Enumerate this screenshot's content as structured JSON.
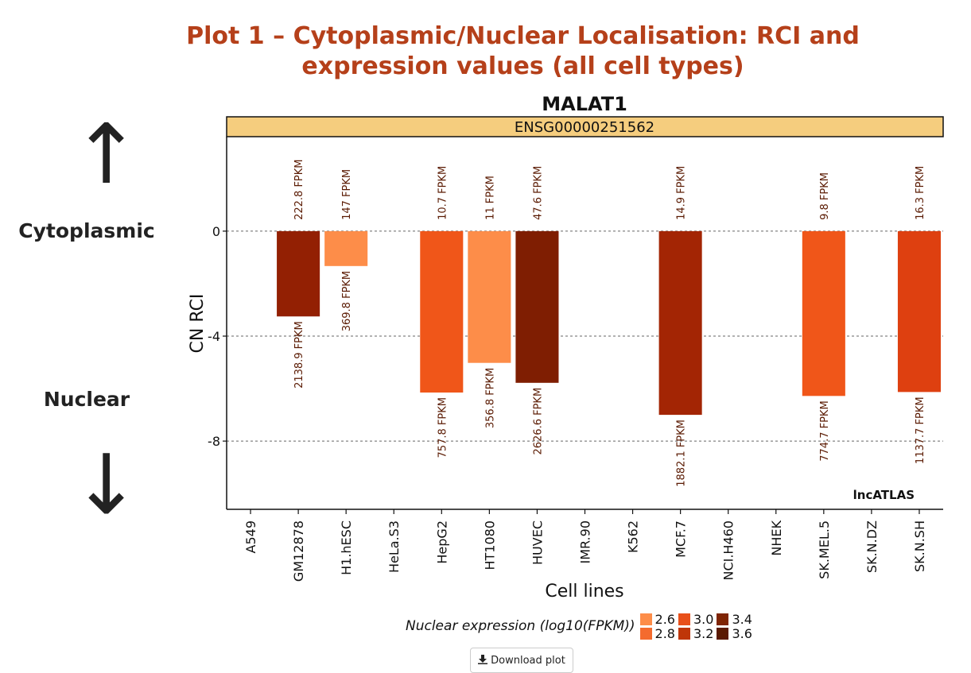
{
  "page": {
    "title_line1": "Plot 1 – Cytoplasmic/Nuclear Localisation: RCI and",
    "title_line2": "expression values (all cell types)",
    "cytoplasmic_label": "Cytoplasmic",
    "nuclear_label": "Nuclear",
    "up_arrow": "↑",
    "down_arrow": "↓",
    "download_label": "Download plot",
    "download_icon": "download-icon"
  },
  "chart_data": {
    "type": "bar",
    "title": "MALAT1",
    "subtitle": "ENSG00000251562",
    "xlabel": "Cell lines",
    "ylabel": "CN RCI",
    "watermark": "lncATLAS",
    "ylim": [
      -10.6,
      3.6
    ],
    "yticks": [
      0,
      -4,
      -8
    ],
    "ytick_labels": [
      "0",
      "-4",
      "-8"
    ],
    "grid": "horizontal dashed at y ticks",
    "categories": [
      "A549",
      "GM12878",
      "H1.hESC",
      "HeLa.S3",
      "HepG2",
      "HT1080",
      "HUVEC",
      "IMR.90",
      "K562",
      "MCF.7",
      "NCI.H460",
      "NHEK",
      "SK.MEL.5",
      "SK.N.DZ",
      "SK.N.SH"
    ],
    "values": [
      null,
      -3.25,
      -1.33,
      null,
      -6.15,
      -5.02,
      -5.78,
      null,
      null,
      -7.0,
      null,
      null,
      -6.28,
      null,
      -6.13
    ],
    "nuclear_log10_fpkm": [
      null,
      3.33,
      2.57,
      null,
      2.88,
      2.55,
      3.42,
      null,
      null,
      3.27,
      null,
      null,
      2.89,
      null,
      3.06
    ],
    "fill_colors": [
      null,
      "#932003",
      "#fd8d49",
      null,
      "#f05619",
      "#fd8d49",
      "#7f1e02",
      null,
      null,
      "#a32504",
      null,
      null,
      "#f05619",
      null,
      "#de4010"
    ],
    "cytoplasmic_labels": [
      "",
      "222.8 FPKM",
      "147 FPKM",
      "",
      "10.7 FPKM",
      "11 FPKM",
      "47.6 FPKM",
      "",
      "",
      "14.9 FPKM",
      "",
      "",
      "9.8 FPKM",
      "",
      "16.3 FPKM"
    ],
    "nuclear_labels": [
      "",
      "2138.9 FPKM",
      "369.8 FPKM",
      "",
      "757.8 FPKM",
      "356.8 FPKM",
      "2626.6 FPKM",
      "",
      "",
      "1882.1 FPKM",
      "",
      "",
      "774.7 FPKM",
      "",
      "1137.7 FPKM"
    ],
    "legend": {
      "title": "Nuclear expression (log10(FPKM))",
      "placement": "bottom",
      "items": [
        {
          "label": "2.6",
          "color": "#fd8d49"
        },
        {
          "label": "3.0",
          "color": "#e8501a"
        },
        {
          "label": "3.4",
          "color": "#7f2504"
        },
        {
          "label": "2.8",
          "color": "#f46b2e"
        },
        {
          "label": "3.2",
          "color": "#bf3608"
        },
        {
          "label": "3.6",
          "color": "#5a1a02"
        }
      ]
    }
  }
}
